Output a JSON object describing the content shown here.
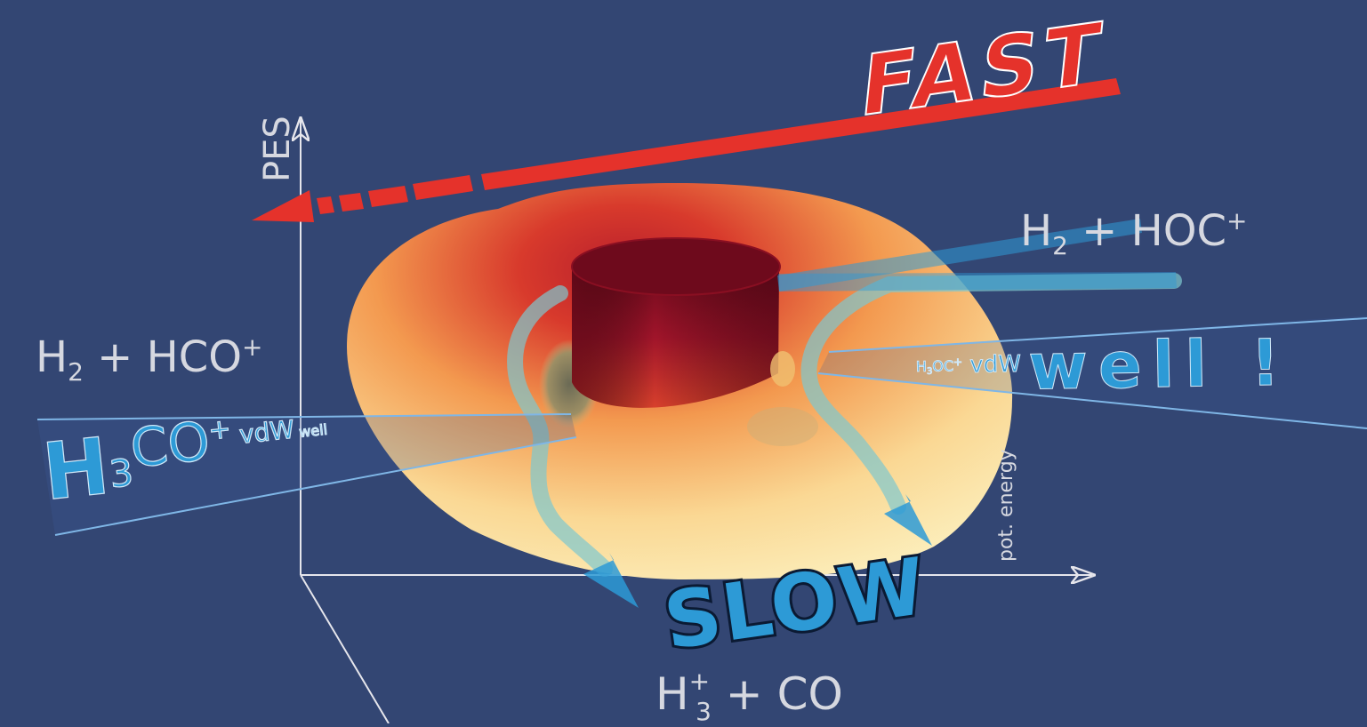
{
  "colors": {
    "background": "#334673",
    "fast": "#e5322b",
    "slow": "#2d9ad6",
    "axis": "#e6e6ec",
    "label": "#d6d8e0",
    "surface_peak": "#6e0a1c",
    "surface_high": "#d83a2c",
    "surface_mid": "#f3994f",
    "surface_low": "#fbefb4"
  },
  "axes": {
    "y_label": "PES",
    "diag_label": "pot. energy"
  },
  "labels": {
    "fast": "FAST",
    "slow": "SLOW",
    "left_channel": {
      "base": "H",
      "sub": "2",
      "rest": " + HCO",
      "sup": "+"
    },
    "right_channel": {
      "base": "H",
      "sub": "2",
      "rest": " + HOC",
      "sup": "+"
    },
    "bottom_channel": {
      "base": "H",
      "sup": "+",
      "sub": "3",
      "rest": " + CO"
    },
    "left_well": {
      "big": "H",
      "sub": "3",
      "mid": "CO",
      "sup": "+",
      "tail": " vdW",
      "small": " well"
    },
    "right_well": {
      "prefix_base": "H",
      "prefix_sub": "3",
      "prefix_rest": "OC",
      "prefix_sup": "+",
      "mid": " vdW ",
      "big": "well !"
    }
  },
  "icons": {
    "fast_arrow": "arrow-left-icon",
    "slow_arrows": "arrow-down-icon"
  }
}
